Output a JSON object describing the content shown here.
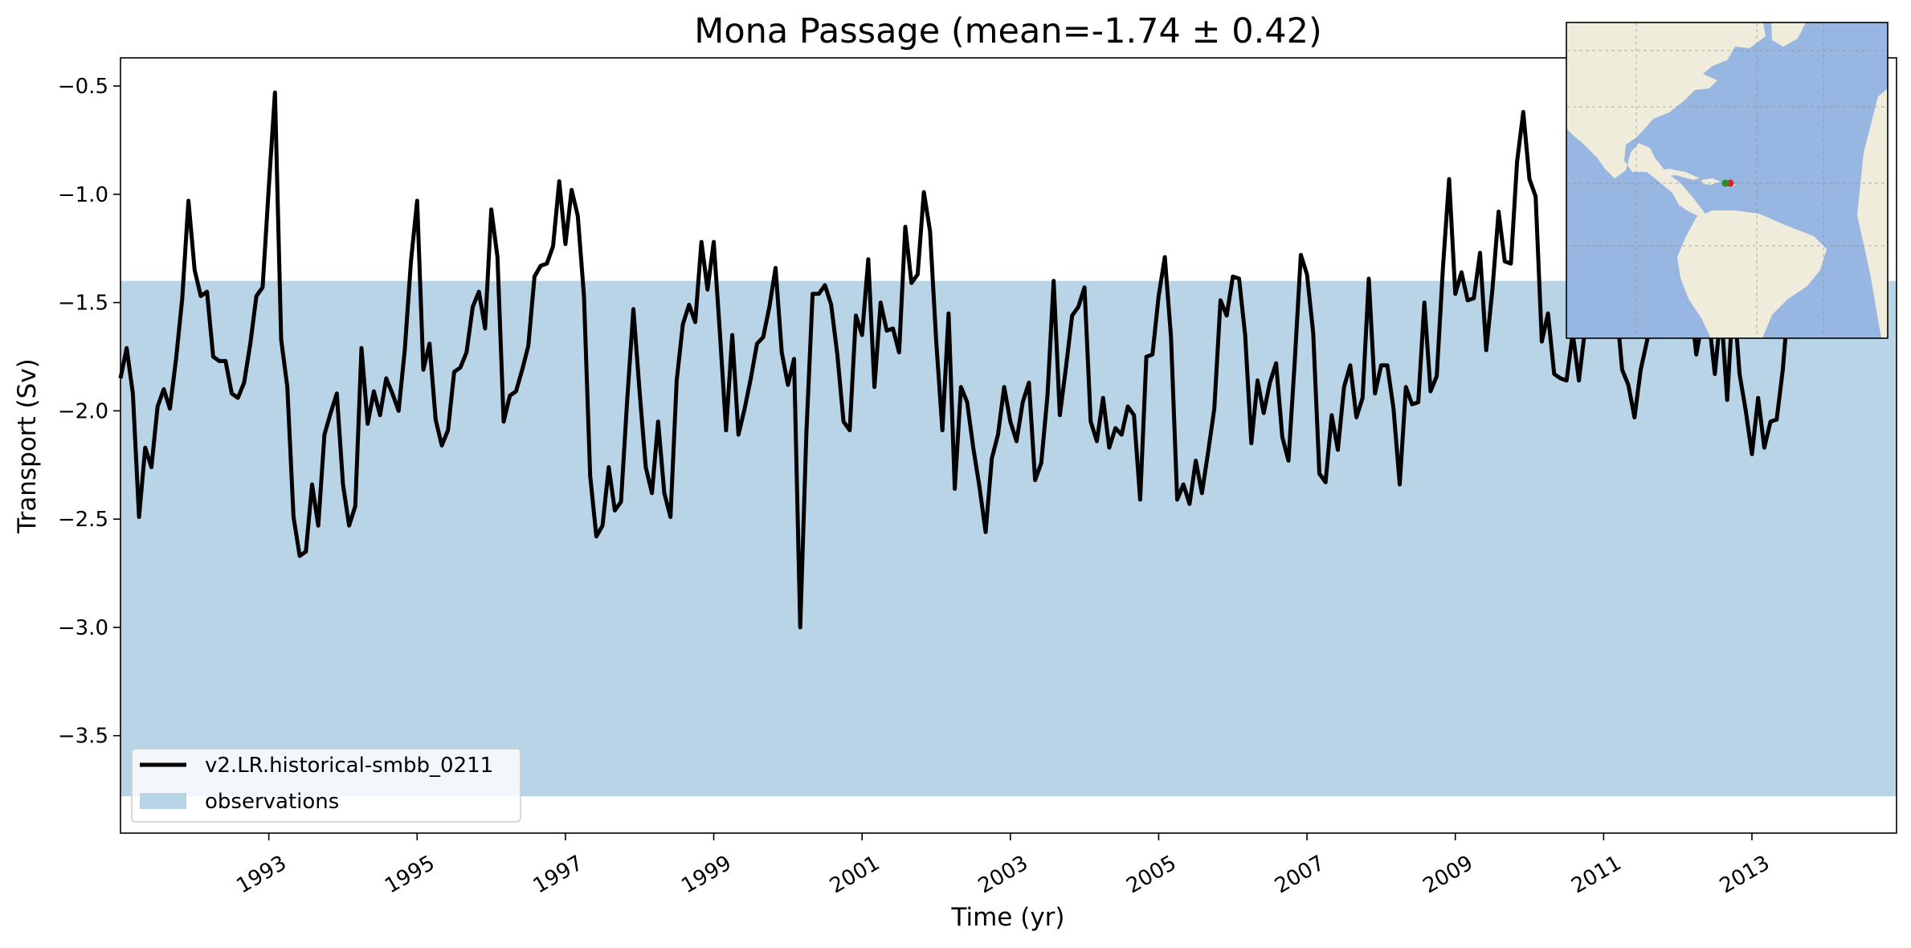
{
  "chart_data": {
    "type": "line",
    "title": "Mona Passage (mean=-1.74 ± 0.42)",
    "xlabel": "Time (yr)",
    "ylabel": "Transport (Sv)",
    "xlim": [
      1991.0,
      2014.95
    ],
    "ylim": [
      -3.95,
      -0.37
    ],
    "x_ticks": [
      1993,
      1995,
      1997,
      1999,
      2001,
      2003,
      2005,
      2007,
      2009,
      2011,
      2013
    ],
    "x_tick_labels": [
      "1993",
      "1995",
      "1997",
      "1999",
      "2001",
      "2003",
      "2005",
      "2007",
      "2009",
      "2011",
      "2013"
    ],
    "y_ticks": [
      -3.5,
      -3.0,
      -2.5,
      -2.0,
      -1.5,
      -1.0,
      -0.5
    ],
    "y_tick_labels": [
      "−3.5",
      "−3.0",
      "−2.5",
      "−2.0",
      "−1.5",
      "−1.0",
      "−0.5"
    ],
    "grid": false,
    "legend_position": "lower-left",
    "band": {
      "name": "observations",
      "ymin": -3.78,
      "ymax": -1.4,
      "color": "#bad4e7"
    },
    "series": [
      {
        "name": "v2.LR.historical-smbb_0211",
        "color": "#000000",
        "start": 1991.0,
        "step": 0.08333333333333333,
        "values": [
          -1.85,
          -1.71,
          -1.92,
          -2.49,
          -2.17,
          -2.26,
          -1.98,
          -1.9,
          -1.99,
          -1.76,
          -1.48,
          -1.03,
          -1.35,
          -1.47,
          -1.45,
          -1.75,
          -1.77,
          -1.77,
          -1.92,
          -1.94,
          -1.87,
          -1.69,
          -1.47,
          -1.43,
          -0.97,
          -0.53,
          -1.67,
          -1.89,
          -2.49,
          -2.67,
          -2.65,
          -2.34,
          -2.53,
          -2.11,
          -2.01,
          -1.92,
          -2.34,
          -2.53,
          -2.44,
          -1.71,
          -2.06,
          -1.91,
          -2.02,
          -1.85,
          -1.92,
          -2.0,
          -1.72,
          -1.31,
          -1.03,
          -1.81,
          -1.69,
          -2.04,
          -2.16,
          -2.09,
          -1.82,
          -1.8,
          -1.73,
          -1.52,
          -1.45,
          -1.62,
          -1.07,
          -1.29,
          -2.05,
          -1.93,
          -1.91,
          -1.81,
          -1.7,
          -1.38,
          -1.33,
          -1.32,
          -1.24,
          -0.94,
          -1.23,
          -0.98,
          -1.1,
          -1.47,
          -2.3,
          -2.58,
          -2.53,
          -2.26,
          -2.46,
          -2.42,
          -1.95,
          -1.53,
          -1.91,
          -2.26,
          -2.38,
          -2.05,
          -2.38,
          -2.49,
          -1.86,
          -1.6,
          -1.51,
          -1.59,
          -1.22,
          -1.44,
          -1.22,
          -1.64,
          -2.09,
          -1.65,
          -2.11,
          -1.99,
          -1.85,
          -1.69,
          -1.66,
          -1.52,
          -1.34,
          -1.73,
          -1.88,
          -1.76,
          -3.0,
          -2.1,
          -1.46,
          -1.46,
          -1.42,
          -1.51,
          -1.74,
          -2.05,
          -2.09,
          -1.56,
          -1.65,
          -1.3,
          -1.89,
          -1.5,
          -1.63,
          -1.62,
          -1.73,
          -1.15,
          -1.41,
          -1.37,
          -0.99,
          -1.17,
          -1.68,
          -2.09,
          -1.55,
          -2.36,
          -1.89,
          -1.96,
          -2.17,
          -2.35,
          -2.56,
          -2.22,
          -2.11,
          -1.89,
          -2.05,
          -2.14,
          -1.96,
          -1.87,
          -2.32,
          -2.24,
          -1.93,
          -1.4,
          -2.02,
          -1.8,
          -1.56,
          -1.52,
          -1.43,
          -2.05,
          -2.14,
          -1.94,
          -2.17,
          -2.08,
          -2.11,
          -1.98,
          -2.02,
          -2.41,
          -1.75,
          -1.74,
          -1.47,
          -1.29,
          -1.66,
          -2.41,
          -2.34,
          -2.43,
          -2.23,
          -2.38,
          -2.19,
          -1.99,
          -1.49,
          -1.56,
          -1.38,
          -1.39,
          -1.65,
          -2.15,
          -1.86,
          -2.01,
          -1.87,
          -1.78,
          -2.12,
          -2.23,
          -1.78,
          -1.28,
          -1.37,
          -1.64,
          -2.29,
          -2.33,
          -2.02,
          -2.18,
          -1.89,
          -1.79,
          -2.03,
          -1.94,
          -1.39,
          -1.92,
          -1.79,
          -1.79,
          -1.99,
          -2.34,
          -1.89,
          -1.97,
          -1.96,
          -1.5,
          -1.91,
          -1.84,
          -1.34,
          -0.93,
          -1.46,
          -1.36,
          -1.49,
          -1.48,
          -1.27,
          -1.72,
          -1.44,
          -1.08,
          -1.31,
          -1.32,
          -0.85,
          -0.62,
          -0.93,
          -1.01,
          -1.68,
          -1.55,
          -1.83,
          -1.85,
          -1.86,
          -1.64,
          -1.86,
          -1.62,
          -1.47,
          -1.38,
          -1.4,
          -1.39,
          -1.49,
          -1.81,
          -1.88,
          -2.03,
          -1.81,
          -1.68,
          -1.53,
          -1.39,
          -1.41,
          -1.35,
          -1.38,
          -1.51,
          -1.47,
          -1.74,
          -1.58,
          -1.57,
          -1.83,
          -1.53,
          -1.95,
          -1.45,
          -1.83,
          -2.0,
          -2.2,
          -1.94,
          -2.17,
          -2.05,
          -2.04,
          -1.81,
          -1.46
        ]
      }
    ]
  },
  "inset_map": {
    "land_color": "#efecdc",
    "ocean_color": "#97b6e1",
    "markers": [
      {
        "name": "start",
        "color": "#2e8b2e"
      },
      {
        "name": "end",
        "color": "#d62728"
      }
    ]
  }
}
